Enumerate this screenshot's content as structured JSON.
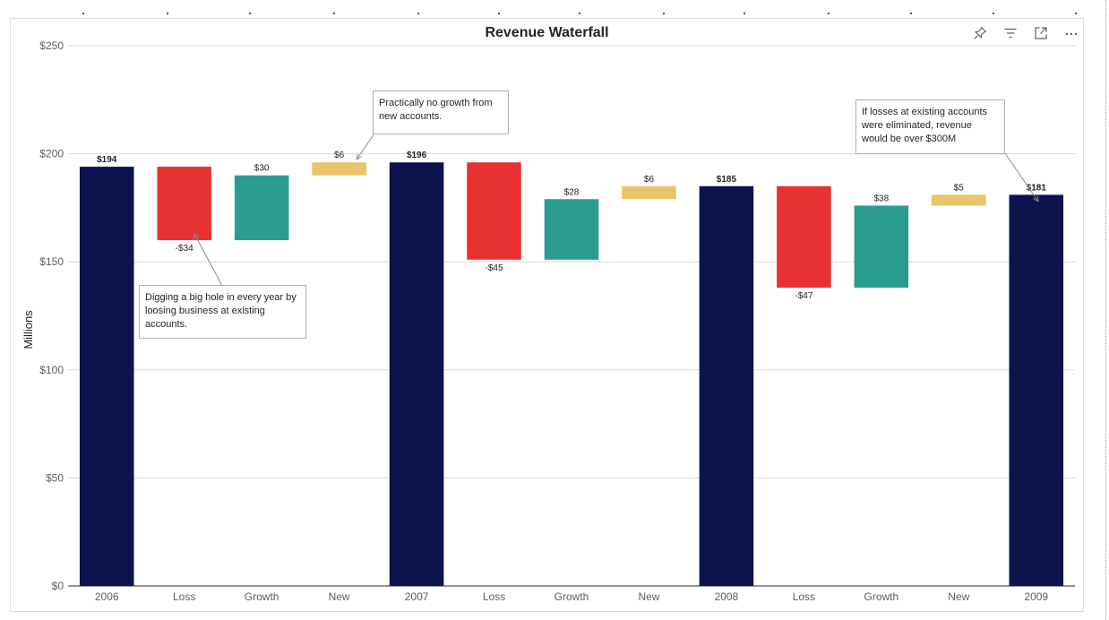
{
  "chart_data": {
    "type": "bar",
    "title": "Revenue Waterfall",
    "ylabel": "Millions",
    "xlabel": "",
    "ylim": [
      0,
      250
    ],
    "y_ticks": [
      "$0",
      "$50",
      "$100",
      "$150",
      "$200",
      "$250"
    ],
    "grid": true,
    "categories": [
      "2006",
      "Loss",
      "Growth",
      "New",
      "2007",
      "Loss",
      "Growth",
      "New",
      "2008",
      "Loss",
      "Growth",
      "New",
      "2009"
    ],
    "steps": [
      {
        "category": "2006",
        "kind": "total",
        "value": 194,
        "label": "$194"
      },
      {
        "category": "Loss",
        "kind": "loss",
        "value": -34,
        "label": "-$34"
      },
      {
        "category": "Growth",
        "kind": "growth",
        "value": 30,
        "label": "$30"
      },
      {
        "category": "New",
        "kind": "new",
        "value": 6,
        "label": "$6"
      },
      {
        "category": "2007",
        "kind": "total",
        "value": 196,
        "label": "$196"
      },
      {
        "category": "Loss",
        "kind": "loss",
        "value": -45,
        "label": "-$45"
      },
      {
        "category": "Growth",
        "kind": "growth",
        "value": 28,
        "label": "$28"
      },
      {
        "category": "New",
        "kind": "new",
        "value": 6,
        "label": "$6"
      },
      {
        "category": "2008",
        "kind": "total",
        "value": 185,
        "label": "$185"
      },
      {
        "category": "Loss",
        "kind": "loss",
        "value": -47,
        "label": "-$47"
      },
      {
        "category": "Growth",
        "kind": "growth",
        "value": 38,
        "label": "$38"
      },
      {
        "category": "New",
        "kind": "new",
        "value": 5,
        "label": "$5"
      },
      {
        "category": "2009",
        "kind": "total",
        "value": 181,
        "label": "$181"
      }
    ],
    "colors": {
      "total": "#0c134f",
      "loss": "#e83232",
      "growth": "#2a9d8f",
      "new": "#e9c46a"
    }
  },
  "annotations": [
    {
      "text": "Practically no growth from new accounts."
    },
    {
      "text": "Digging a big hole in every year by loosing business at existing accounts."
    },
    {
      "text": "If losses at existing accounts were eliminated, revenue would be over $300M"
    }
  ],
  "toolbar": {
    "icons": [
      "pin-icon",
      "filter-icon",
      "focus-mode-icon",
      "more-options-icon"
    ]
  }
}
